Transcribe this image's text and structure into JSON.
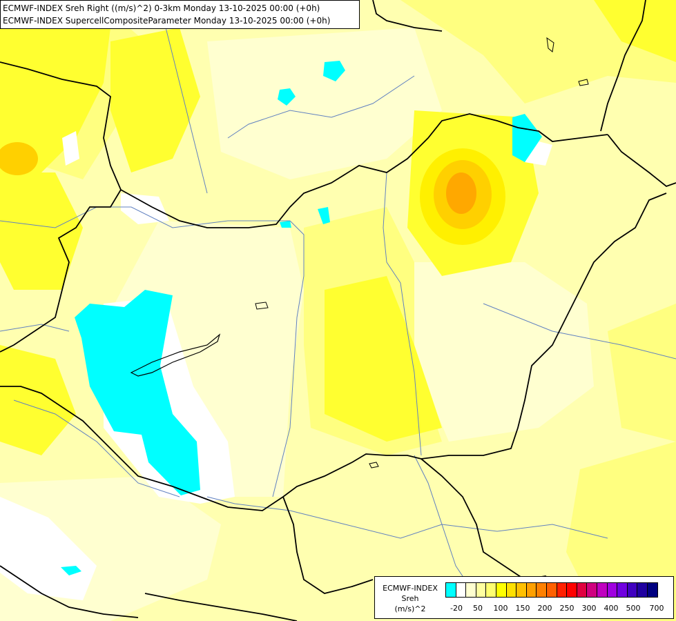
{
  "header": {
    "line1": "ECMWF-INDEX Sreh Right ((m/s)^2) 0-3km Monday 13-10-2025 00:00 (+0h)",
    "line2": "ECMWF-INDEX SupercellCompositeParameter Monday 13-10-2025 00:00 (+0h)"
  },
  "legend": {
    "source": "ECMWF-INDEX",
    "variable": "Sreh",
    "unit": "(m/s)^2",
    "colors": [
      "#00ffff",
      "#ffffff",
      "#ffffd0",
      "#ffffa0",
      "#ffff70",
      "#ffff00",
      "#ffe000",
      "#ffc000",
      "#ffa000",
      "#ff8000",
      "#ff6000",
      "#ff2000",
      "#ff0000",
      "#e00040",
      "#d00080",
      "#c000c0",
      "#a000e0",
      "#7000e0",
      "#4000c0",
      "#2000a0",
      "#000080"
    ],
    "tick_labels": [
      "-20",
      "50",
      "100",
      "150",
      "200",
      "250",
      "300",
      "400",
      "500",
      "700"
    ]
  },
  "map": {
    "field_colors": {
      "base": "#ffffb0",
      "pale": "#ffffd0",
      "light": "#ffff80",
      "mid": "#ffff30",
      "strong": "#fff000",
      "orange_light": "#ffd000",
      "orange": "#ffa800",
      "white": "#ffffff",
      "cyan": "#00ffff"
    },
    "border_color": "#000000",
    "river_color": "#6080c0"
  }
}
